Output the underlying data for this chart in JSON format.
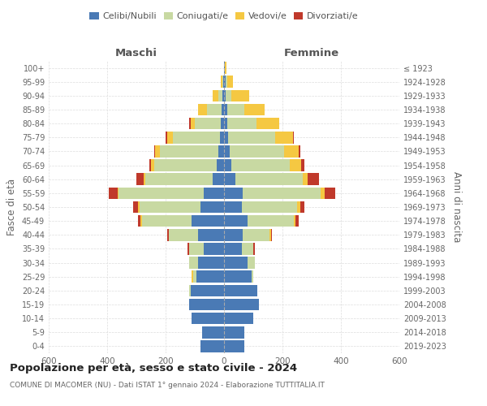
{
  "age_groups": [
    "0-4",
    "5-9",
    "10-14",
    "15-19",
    "20-24",
    "25-29",
    "30-34",
    "35-39",
    "40-44",
    "45-49",
    "50-54",
    "55-59",
    "60-64",
    "65-69",
    "70-74",
    "75-79",
    "80-84",
    "85-89",
    "90-94",
    "95-99",
    "100+"
  ],
  "birth_years": [
    "2019-2023",
    "2014-2018",
    "2009-2013",
    "2004-2008",
    "1999-2003",
    "1994-1998",
    "1989-1993",
    "1984-1988",
    "1979-1983",
    "1974-1978",
    "1969-1973",
    "1964-1968",
    "1959-1963",
    "1954-1958",
    "1949-1953",
    "1944-1948",
    "1939-1943",
    "1934-1938",
    "1929-1933",
    "1924-1928",
    "≤ 1923"
  ],
  "colors": {
    "celibi": "#4A7AB5",
    "coniugati": "#C8D9A2",
    "vedovi": "#F5C842",
    "divorziati": "#C0392B"
  },
  "maschi": {
    "celibi": [
      80,
      75,
      110,
      120,
      115,
      95,
      90,
      70,
      90,
      110,
      80,
      70,
      40,
      25,
      20,
      15,
      10,
      8,
      5,
      2,
      0
    ],
    "coniugati": [
      0,
      0,
      0,
      0,
      5,
      10,
      30,
      50,
      100,
      170,
      210,
      290,
      230,
      215,
      200,
      160,
      90,
      50,
      15,
      3,
      0
    ],
    "vedovi": [
      0,
      0,
      0,
      0,
      0,
      5,
      0,
      0,
      0,
      5,
      5,
      5,
      5,
      10,
      15,
      20,
      15,
      30,
      20,
      5,
      0
    ],
    "divorziati": [
      0,
      0,
      0,
      0,
      0,
      0,
      0,
      5,
      5,
      10,
      15,
      30,
      25,
      5,
      5,
      5,
      5,
      0,
      0,
      0,
      0
    ]
  },
  "femmine": {
    "celibi": [
      70,
      70,
      100,
      120,
      115,
      95,
      80,
      60,
      65,
      80,
      60,
      65,
      40,
      25,
      20,
      15,
      10,
      10,
      5,
      5,
      2
    ],
    "coniugati": [
      0,
      0,
      0,
      0,
      0,
      5,
      25,
      40,
      90,
      160,
      190,
      265,
      230,
      200,
      185,
      160,
      100,
      60,
      20,
      5,
      0
    ],
    "vedovi": [
      0,
      0,
      0,
      0,
      0,
      0,
      0,
      0,
      5,
      5,
      10,
      15,
      15,
      40,
      50,
      60,
      80,
      70,
      60,
      20,
      5
    ],
    "divorziati": [
      0,
      0,
      0,
      0,
      0,
      0,
      0,
      5,
      5,
      10,
      15,
      35,
      40,
      10,
      5,
      5,
      0,
      0,
      0,
      0,
      0
    ]
  },
  "title": "Popolazione per età, sesso e stato civile - 2024",
  "subtitle": "COMUNE DI MACOMER (NU) - Dati ISTAT 1° gennaio 2024 - Elaborazione TUTTITALIA.IT",
  "xlabel_left": "Maschi",
  "xlabel_right": "Femmine",
  "ylabel_left": "Fasce di età",
  "ylabel_right": "Anni di nascita",
  "xlim": 600,
  "legend_labels": [
    "Celibi/Nubili",
    "Coniugati/e",
    "Vedovi/e",
    "Divorziati/e"
  ],
  "bg_color": "#FFFFFF",
  "grid_color": "#CCCCCC"
}
